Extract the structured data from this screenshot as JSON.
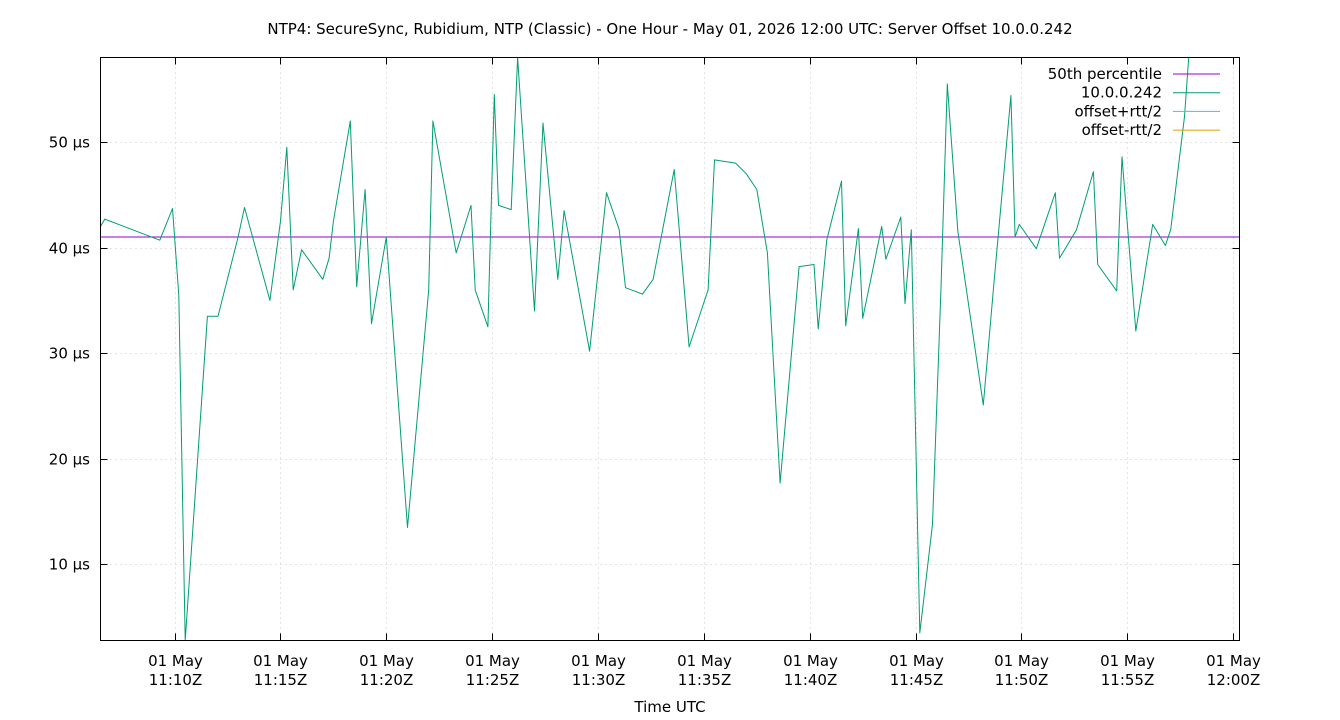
{
  "chart_data": {
    "type": "line",
    "title": "NTP4: SecureSync, Rubidium, NTP (Classic) - One Hour - May 01, 2026 12:00 UTC: Server Offset 10.0.0.242",
    "xlabel": "Time UTC",
    "ylabel": "",
    "ylim": [
      2.8,
      58
    ],
    "xlim": [
      -3.5,
      50.3
    ],
    "x_unit": "minutes after 11:10Z",
    "y_ticks": [
      {
        "value": 10,
        "label": "10 µs"
      },
      {
        "value": 20,
        "label": "20 µs"
      },
      {
        "value": 30,
        "label": "30 µs"
      },
      {
        "value": 40,
        "label": "40 µs"
      },
      {
        "value": 50,
        "label": "50 µs"
      }
    ],
    "x_ticks": [
      {
        "value": 0,
        "line1": "01 May",
        "line2": "11:10Z"
      },
      {
        "value": 5,
        "line1": "01 May",
        "line2": "11:15Z"
      },
      {
        "value": 10,
        "line1": "01 May",
        "line2": "11:20Z"
      },
      {
        "value": 15,
        "line1": "01 May",
        "line2": "11:25Z"
      },
      {
        "value": 20,
        "line1": "01 May",
        "line2": "11:30Z"
      },
      {
        "value": 25,
        "line1": "01 May",
        "line2": "11:35Z"
      },
      {
        "value": 30,
        "line1": "01 May",
        "line2": "11:40Z"
      },
      {
        "value": 35,
        "line1": "01 May",
        "line2": "11:45Z"
      },
      {
        "value": 40,
        "line1": "01 May",
        "line2": "11:50Z"
      },
      {
        "value": 45,
        "line1": "01 May",
        "line2": "11:55Z"
      },
      {
        "value": 50,
        "line1": "01 May",
        "line2": "12:00Z"
      }
    ],
    "grid": true,
    "legend_position": "top-right",
    "series": [
      {
        "name": "50th percentile",
        "color": "#9400d3",
        "kind": "hline",
        "value": 41.0
      },
      {
        "name": "10.0.0.242",
        "color": "#009e73",
        "kind": "line",
        "x": [
          -3.5,
          -3.3,
          -0.7,
          -0.1,
          0.2,
          0.5,
          1.55,
          2.05,
          3.0,
          3.3,
          4.5,
          5.0,
          5.3,
          5.6,
          6.0,
          7.0,
          7.3,
          7.5,
          8.3,
          8.6,
          9.0,
          9.3,
          10.0,
          11.0,
          12.0,
          12.2,
          13.3,
          14.0,
          14.2,
          14.8,
          15.1,
          15.3,
          15.9,
          16.2,
          16.4,
          17.0,
          17.4,
          18.1,
          18.4,
          19.6,
          20.4,
          21.0,
          21.3,
          22.1,
          22.6,
          23.6,
          24.3,
          25.2,
          25.5,
          26.5,
          27.0,
          27.5,
          28.0,
          28.6,
          29.5,
          30.2,
          30.4,
          30.8,
          31.5,
          31.7,
          32.3,
          32.5,
          33.4,
          33.6,
          34.3,
          34.5,
          34.8,
          35.2,
          35.8,
          36.2,
          36.5,
          37.0,
          38.2,
          38.7,
          39.5,
          39.7,
          39.9,
          40.7,
          41.6,
          41.8,
          42.6,
          43.4,
          43.6,
          44.5,
          44.6,
          44.75,
          45.4,
          46.2,
          46.8,
          47.05,
          47.7,
          47.9,
          48.05,
          48.9,
          49.3,
          50.0,
          50.3
        ],
        "y": [
          42.0,
          42.7,
          40.7,
          43.7,
          35.5,
          2.8,
          33.5,
          33.5,
          41.0,
          43.8,
          35.0,
          42.5,
          49.5,
          36.0,
          39.8,
          37.0,
          39.0,
          42.5,
          52.0,
          36.3,
          45.5,
          32.8,
          41.0,
          13.5,
          36.0,
          52.0,
          39.5,
          44.0,
          36.0,
          32.5,
          54.5,
          44.0,
          43.6,
          58.0,
          52.0,
          34.0,
          51.8,
          37.0,
          43.5,
          30.2,
          45.2,
          41.7,
          36.2,
          35.6,
          37.0,
          47.4,
          30.6,
          36.0,
          48.3,
          48.0,
          47.0,
          45.5,
          39.5,
          17.7,
          38.2,
          38.4,
          32.3,
          40.7,
          46.3,
          32.6,
          41.8,
          33.3,
          42.0,
          38.9,
          42.9,
          34.7,
          41.7,
          3.5,
          13.8,
          36.2,
          55.5,
          41.5,
          25.1,
          36.6,
          54.4,
          41.0,
          42.2,
          39.9,
          45.2,
          39.0,
          41.7,
          47.2,
          38.4,
          35.9,
          41.0,
          48.6,
          32.1,
          42.2,
          40.2,
          41.7,
          52.4,
          58.0,
          58.0,
          58.0,
          58.0,
          58.0,
          58.0
        ]
      },
      {
        "name": "offset+rtt/2",
        "color": "#56b4e9",
        "kind": "none"
      },
      {
        "name": "offset-rtt/2",
        "color": "#e69f00",
        "kind": "none"
      }
    ]
  }
}
